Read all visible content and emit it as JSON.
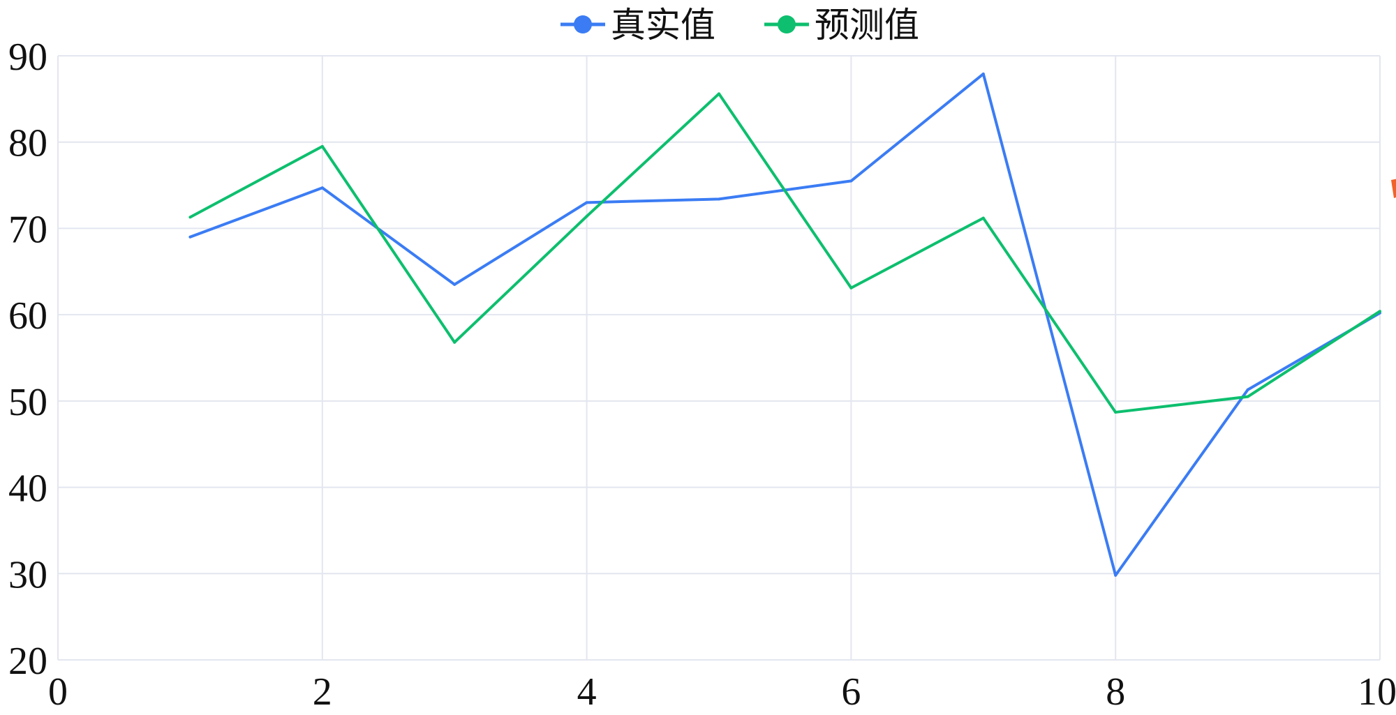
{
  "chart_data": {
    "type": "line",
    "title": "",
    "xlabel": "",
    "ylabel": "",
    "xlim": [
      0,
      10
    ],
    "ylim": [
      20,
      90
    ],
    "x_ticks": [
      "0",
      "2",
      "4",
      "6",
      "8",
      "10"
    ],
    "y_ticks": [
      "20",
      "30",
      "40",
      "50",
      "60",
      "70",
      "80",
      "90"
    ],
    "grid": true,
    "legend_position": "top-center",
    "x": [
      1,
      2,
      3,
      4,
      5,
      6,
      7,
      8,
      9,
      10
    ],
    "series": [
      {
        "name": "真实值",
        "color": "#3b7cf4",
        "values": [
          69.0,
          74.7,
          63.5,
          73.0,
          73.4,
          75.5,
          87.9,
          29.8,
          51.3,
          60.2
        ]
      },
      {
        "name": "预测值",
        "color": "#0dbf6e",
        "values": [
          71.3,
          79.5,
          56.8,
          71.4,
          85.6,
          63.1,
          71.2,
          48.7,
          50.5,
          60.4
        ]
      }
    ]
  },
  "side_icon": {
    "name": "toolbox-icon",
    "color": "#f0622a"
  }
}
